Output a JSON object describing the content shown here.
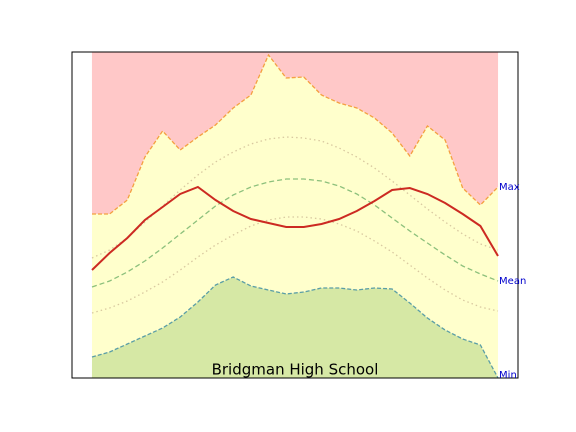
{
  "chart_data": {
    "type": "area",
    "title": "Bridgman High School",
    "x": [
      0,
      1,
      2,
      3,
      4,
      5,
      6,
      7,
      8,
      9,
      10,
      11,
      12,
      13,
      14,
      15,
      16,
      17,
      18,
      19,
      20,
      21,
      22,
      23
    ],
    "xlim": [
      -1.13,
      24.13
    ],
    "ylim": [
      0,
      326
    ],
    "max": {
      "color": "#f4a040",
      "fill_above": "#ffc8c8",
      "fill_below": "#ffffcc",
      "values": [
        164,
        164,
        178,
        221,
        247,
        228,
        241,
        253,
        270,
        283,
        323,
        300,
        301,
        283,
        275,
        270,
        260,
        245,
        222,
        252,
        238,
        190,
        173,
        191
      ]
    },
    "min": {
      "color": "#5b9ea6",
      "fill_below": "#d6e8a5",
      "values": [
        21,
        26,
        34,
        42,
        50,
        61,
        76,
        93,
        101,
        92,
        88,
        84,
        86,
        90,
        90,
        88,
        90,
        89,
        75,
        60,
        48,
        39,
        33,
        0
      ]
    },
    "series": [
      {
        "color": "#d8c8a0",
        "style": "dotted",
        "values": [
          120,
          128,
          140,
          156,
          172,
          188,
          203,
          216,
          226,
          234,
          239,
          241,
          240,
          237,
          230,
          221,
          210,
          197,
          183,
          169,
          156,
          144,
          134,
          128
        ]
      },
      {
        "color": "#d8c8a0",
        "style": "dotted",
        "values": [
          65,
          70,
          77,
          86,
          96,
          108,
          121,
          133,
          143,
          152,
          158,
          161,
          161,
          159,
          154,
          147,
          137,
          126,
          113,
          100,
          88,
          78,
          71,
          67
        ]
      },
      {
        "color": "#8cc07c",
        "style": "dashed",
        "values": [
          91,
          97,
          106,
          117,
          130,
          144,
          158,
          172,
          183,
          191,
          196,
          199,
          199,
          197,
          192,
          184,
          173,
          160,
          147,
          135,
          123,
          112,
          104,
          97
        ]
      },
      {
        "color": "#cc2a22",
        "style": "solid",
        "values": [
          108,
          125,
          140,
          158,
          171,
          184,
          191,
          178,
          167,
          159,
          155,
          151,
          151,
          154,
          159,
          167,
          177,
          188,
          190,
          184,
          175,
          164,
          152,
          122
        ]
      }
    ],
    "labels": {
      "max": "Max",
      "mean": "Mean",
      "min": "Min"
    },
    "label_color": "#0000cc"
  }
}
